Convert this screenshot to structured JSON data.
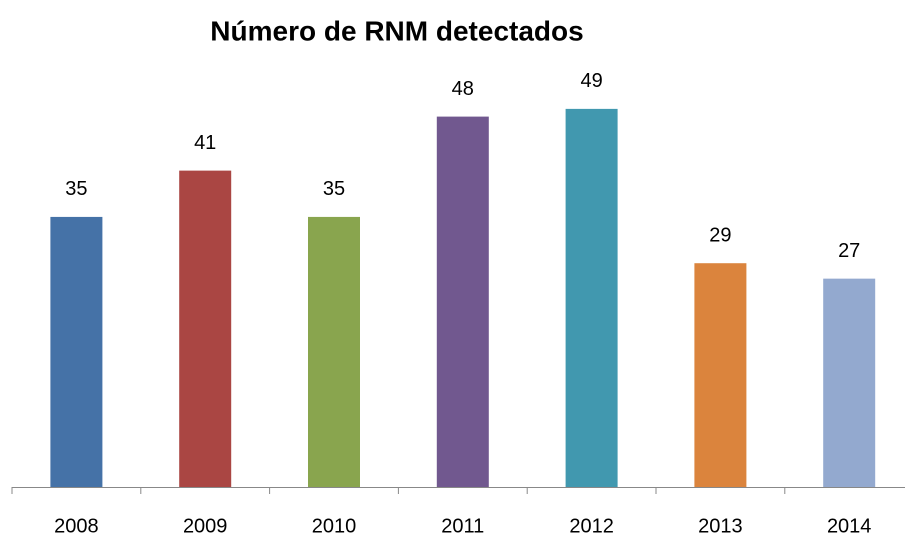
{
  "chart_data": {
    "type": "bar",
    "title": "Número de RNM detectados",
    "categories": [
      "2008",
      "2009",
      "2010",
      "2011",
      "2012",
      "2013",
      "2014"
    ],
    "values": [
      35,
      41,
      35,
      48,
      49,
      29,
      27
    ],
    "colors": [
      "#4572a7",
      "#aa4643",
      "#89a54e",
      "#71588f",
      "#4198af",
      "#db843d",
      "#93a9cf"
    ],
    "ylim": [
      0,
      60
    ],
    "data_labels": true
  }
}
